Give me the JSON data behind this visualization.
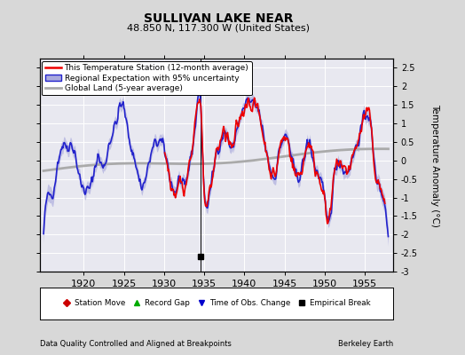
{
  "title": "SULLIVAN LAKE NEAR",
  "subtitle": "48.850 N, 117.300 W (United States)",
  "ylabel": "Temperature Anomaly (°C)",
  "footer_left": "Data Quality Controlled and Aligned at Breakpoints",
  "footer_right": "Berkeley Earth",
  "xlim": [
    1914.5,
    1958.5
  ],
  "ylim": [
    -3.0,
    2.75
  ],
  "yticks": [
    -3,
    -2.5,
    -2,
    -1.5,
    -1,
    -0.5,
    0,
    0.5,
    1,
    1.5,
    2,
    2.5
  ],
  "xticks": [
    1920,
    1925,
    1930,
    1935,
    1940,
    1945,
    1950,
    1955
  ],
  "background_color": "#d8d8d8",
  "plot_bg_color": "#e8e8f0",
  "grid_color": "#ffffff",
  "empirical_break_x": 1934.5,
  "empirical_break_y": -2.6,
  "regional_color": "#2222cc",
  "regional_fill_color": "#aaaadd",
  "station_color": "#ee0000",
  "global_color": "#aaaaaa",
  "global_linewidth": 2.0,
  "station_linewidth": 1.2,
  "regional_linewidth": 1.2,
  "title_fontsize": 10,
  "subtitle_fontsize": 8
}
